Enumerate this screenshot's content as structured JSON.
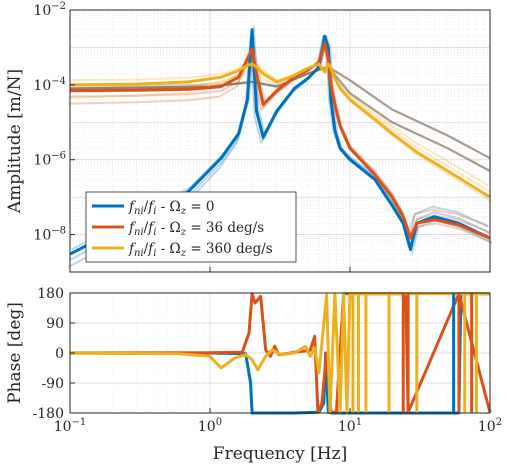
{
  "figure": {
    "amplitude_ylabel": "Amplitude [m/N]",
    "phase_ylabel": "Phase [deg]",
    "xlabel": "Frequency [Hz]"
  },
  "colors": {
    "omega_0": "#0072BD",
    "omega_36": "#D95319",
    "omega_360": "#EDB120",
    "axis": "#262626",
    "grid": "#dcdcdc"
  },
  "legend": {
    "items": [
      {
        "label": "f_ni/f_i - Ω_z = 0",
        "color": "#0072BD"
      },
      {
        "label": "f_ni/f_i - Ω_z = 36 deg/s",
        "color": "#D95319"
      },
      {
        "label": "f_ni/f_i - Ω_z = 360 deg/s",
        "color": "#EDB120"
      }
    ]
  },
  "chart_data": [
    {
      "type": "line",
      "title": "",
      "xlabel": "",
      "ylabel": "Amplitude [m/N]",
      "xscale": "log",
      "yscale": "log",
      "xlim": [
        0.1,
        100
      ],
      "ylim": [
        1e-09,
        0.01
      ],
      "x_ticks": [
        0.1,
        1,
        10,
        100
      ],
      "y_tick_labels": [
        "10^-8",
        "10^-6",
        "10^-4",
        "10^-2"
      ],
      "grid": true,
      "legend_placement": "bottom-left",
      "series": [
        {
          "name": "f_ni/f_i - Ω_z = 0",
          "color": "#0072BD",
          "x": [
            0.1,
            0.3,
            0.7,
            1.2,
            1.6,
            1.85,
            2.0,
            2.15,
            2.4,
            3.0,
            4.0,
            5.0,
            6.0,
            6.6,
            7.0,
            7.3,
            7.8,
            8.5,
            10,
            15,
            20,
            24,
            27,
            30,
            40,
            60,
            100
          ],
          "y": [
            3e-09,
            2.5e-08,
            1.4e-07,
            1.1e-06,
            5e-06,
            4e-05,
            0.003,
            2e-05,
            4e-06,
            2e-05,
            8e-05,
            0.00015,
            0.0003,
            0.002,
            0.001,
            4e-05,
            6e-06,
            2e-06,
            1e-06,
            3e-07,
            6e-08,
            2e-08,
            4e-09,
            2e-08,
            3e-08,
            2e-08,
            8e-09
          ]
        },
        {
          "name": "f_ni/f_i - Ω_z = 36 deg/s",
          "color": "#D95319",
          "x": [
            0.1,
            0.3,
            0.7,
            1.2,
            1.6,
            1.85,
            2.0,
            2.15,
            2.4,
            3.0,
            4.0,
            5.0,
            6.0,
            6.6,
            7.0,
            7.3,
            7.8,
            8.5,
            10,
            15,
            20,
            24,
            27,
            30,
            40,
            60,
            100
          ],
          "y": [
            7e-05,
            7.2e-05,
            7.6e-05,
            9e-05,
            0.00016,
            0.0005,
            0.0009,
            0.0002,
            3e-05,
            7e-05,
            0.00016,
            0.00025,
            0.0004,
            0.0013,
            0.0005,
            0.0001,
            3e-05,
            8e-06,
            2e-06,
            4e-07,
            1e-07,
            3e-08,
            8e-09,
            2e-08,
            2.5e-08,
            1.8e-08,
            8e-09
          ]
        },
        {
          "name": "f_ni/f_i - Ω_z = 360 deg/s",
          "color": "#EDB120",
          "x": [
            0.1,
            0.3,
            0.7,
            1.2,
            1.6,
            1.85,
            2.0,
            2.15,
            2.4,
            3.0,
            4.0,
            5.0,
            6.0,
            6.6,
            7.0,
            7.3,
            7.8,
            8.5,
            10,
            15,
            20,
            30,
            50,
            100
          ],
          "y": [
            0.0001,
            0.000105,
            0.00012,
            0.00016,
            0.00024,
            0.00033,
            0.00036,
            0.0003,
            0.0002,
            0.00012,
            0.00018,
            0.00028,
            0.00036,
            0.00022,
            0.00036,
            0.00028,
            0.00015,
            8e-05,
            4e-05,
            1.2e-05,
            5e-06,
            1.6e-06,
            5e-07,
            1e-07
          ]
        }
      ]
    },
    {
      "type": "line",
      "title": "",
      "xlabel": "Frequency [Hz]",
      "ylabel": "Phase [deg]",
      "xscale": "log",
      "xlim": [
        0.1,
        100
      ],
      "ylim": [
        -180,
        180
      ],
      "x_ticks": [
        0.1,
        1,
        10,
        100
      ],
      "y_ticks": [
        -180,
        -90,
        0,
        90,
        180
      ],
      "grid": true,
      "series": [
        {
          "name": "f_ni/f_i - Ω_z = 0",
          "color": "#0072BD",
          "x": [
            0.1,
            1.0,
            1.8,
            1.95,
            2.0,
            2.1,
            2.3,
            4.0,
            6.0,
            6.5,
            6.7,
            7.0,
            7.5,
            8.0,
            50,
            60,
            62,
            100
          ],
          "y": [
            0,
            0,
            -2,
            -90,
            -180,
            -180,
            -180,
            -180,
            -178,
            -150,
            0,
            -178,
            -180,
            -180,
            -180,
            -180,
            178,
            178
          ]
        },
        {
          "name": "f_ni/f_i - Ω_z = 36 deg/s",
          "color": "#D95319",
          "x": [
            0.1,
            1.0,
            1.7,
            1.9,
            2.0,
            2.1,
            2.3,
            2.5,
            2.7,
            2.9,
            3.1,
            4.0,
            5.2,
            5.6,
            5.9,
            6.3,
            6.8,
            7.3,
            8.0,
            9.0,
            25,
            26,
            60,
            100
          ],
          "y": [
            0,
            1,
            2,
            60,
            178,
            150,
            170,
            10,
            -10,
            20,
            -5,
            2,
            8,
            50,
            -178,
            -150,
            0,
            -178,
            -178,
            178,
            178,
            -178,
            178,
            -178
          ]
        },
        {
          "name": "f_ni/f_i - Ω_z = 360 deg/s",
          "color": "#EDB120",
          "x": [
            0.1,
            0.6,
            1.0,
            1.2,
            1.5,
            1.8,
            2.0,
            2.2,
            2.5,
            2.8,
            3.2,
            4.0,
            4.8,
            5.2,
            5.6,
            6.0,
            6.4,
            6.8,
            7.2,
            7.8,
            8.5,
            9.0,
            9.5,
            10,
            100
          ],
          "y": [
            -1,
            -2,
            -10,
            -45,
            -15,
            -5,
            -20,
            -50,
            -10,
            10,
            -5,
            0,
            20,
            -10,
            15,
            -60,
            60,
            175,
            -178,
            178,
            -178,
            178,
            -178,
            178,
            178
          ]
        }
      ]
    }
  ]
}
